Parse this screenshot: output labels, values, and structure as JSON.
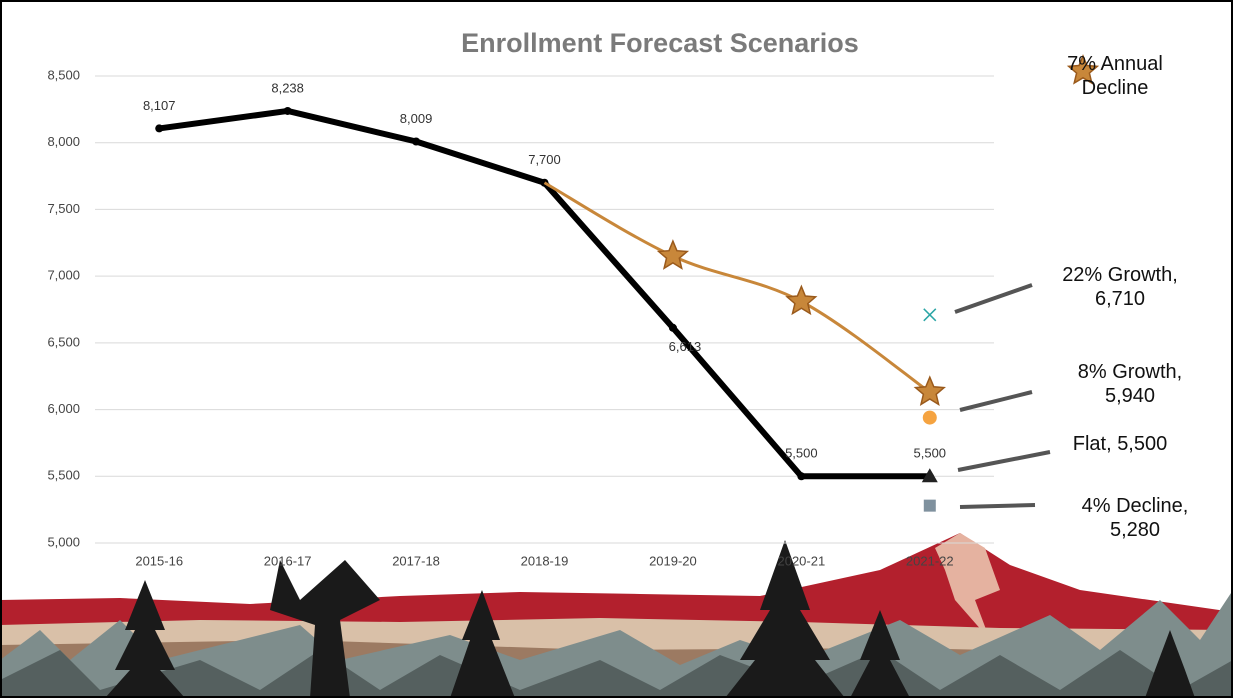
{
  "chart_data": {
    "type": "line",
    "title": "Enrollment Forecast Scenarios",
    "categories": [
      "2015-16",
      "2016-17",
      "2017-18",
      "2018-19",
      "2019-20",
      "2020-21",
      "2021-22"
    ],
    "ylim": [
      5000,
      8500
    ],
    "yticks": [
      {
        "value": 5000,
        "label": "5,000"
      },
      {
        "value": 5500,
        "label": "5,500"
      },
      {
        "value": 6000,
        "label": "6,000"
      },
      {
        "value": 6500,
        "label": "6,500"
      },
      {
        "value": 7000,
        "label": "7,000"
      },
      {
        "value": 7500,
        "label": "7,500"
      },
      {
        "value": 8000,
        "label": "8,000"
      },
      {
        "value": 8500,
        "label": "8,500"
      }
    ],
    "grid": true,
    "series": [
      {
        "color": "#000000",
        "marker": "dot",
        "values": [
          8107,
          8238,
          8009,
          7700,
          6613,
          5500,
          5500
        ],
        "value_labels": [
          "8,107",
          "8,238",
          "8,009",
          "7,700",
          "6,613",
          "5,500",
          "5,500"
        ]
      },
      {
        "name": "7% Annual Decline",
        "color": "#c8873a",
        "marker": "star",
        "values": [
          null,
          null,
          null,
          7700,
          7150,
          6810,
          6130
        ]
      },
      {
        "color": "#2aa5a5",
        "marker": "x",
        "values": [
          null,
          null,
          null,
          null,
          null,
          null,
          6710
        ]
      },
      {
        "color": "#f5a340",
        "marker": "circle",
        "values": [
          null,
          null,
          null,
          null,
          null,
          null,
          5940
        ]
      },
      {
        "color": "#222222",
        "marker": "triangle",
        "values": [
          null,
          null,
          null,
          null,
          null,
          null,
          5500
        ]
      },
      {
        "color": "#7f919e",
        "marker": "square",
        "values": [
          null,
          null,
          null,
          null,
          null,
          null,
          5280
        ]
      }
    ],
    "annotations": [
      "22% Growth, 6,710",
      "8% Growth, 5,940",
      "Flat, 5,500",
      "4% Decline, 5,280"
    ]
  }
}
